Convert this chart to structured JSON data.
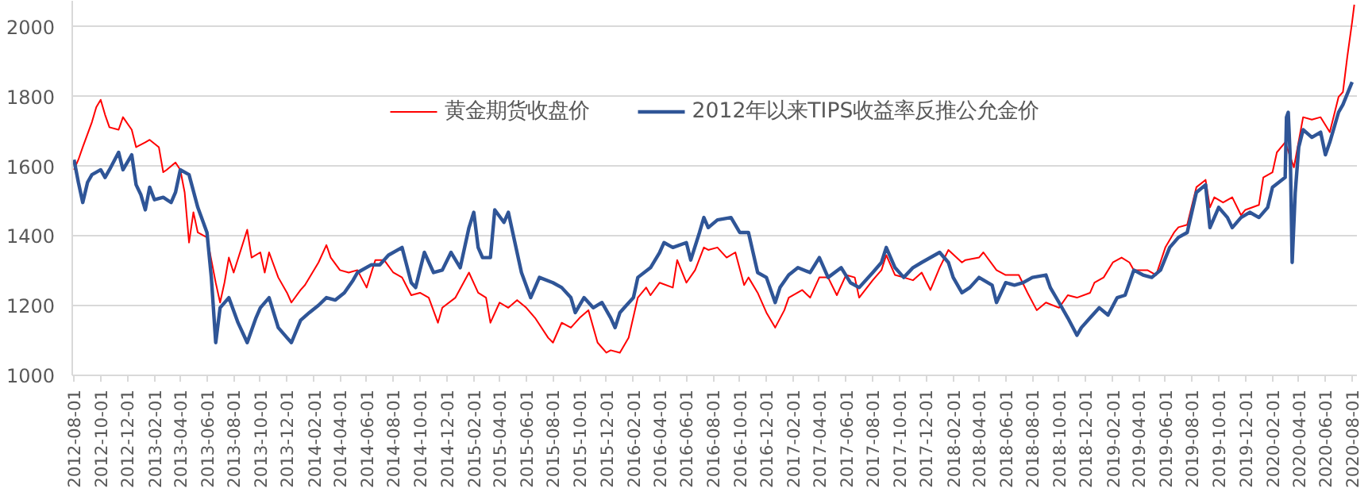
{
  "chart_data": {
    "type": "line",
    "legend": "top",
    "grid": "y",
    "line_style": "solid",
    "ylim": [
      1000,
      2075
    ],
    "yticks": [
      1000,
      1200,
      1400,
      1600,
      1800,
      2000
    ],
    "xlim": [
      "2012-07-28",
      "2020-08-12"
    ],
    "xticks": [
      "2012-08-01",
      "2012-10-01",
      "2012-12-01",
      "2013-02-01",
      "2013-04-01",
      "2013-06-01",
      "2013-08-01",
      "2013-10-01",
      "2013-12-01",
      "2014-02-01",
      "2014-04-01",
      "2014-06-01",
      "2014-08-01",
      "2014-10-01",
      "2014-12-01",
      "2015-02-01",
      "2015-04-01",
      "2015-06-01",
      "2015-08-01",
      "2015-10-01",
      "2015-12-01",
      "2016-02-01",
      "2016-04-01",
      "2016-06-01",
      "2016-08-01",
      "2016-10-01",
      "2016-12-01",
      "2017-02-01",
      "2017-04-01",
      "2017-06-01",
      "2017-08-01",
      "2017-10-01",
      "2017-12-01",
      "2018-02-01",
      "2018-04-01",
      "2018-06-01",
      "2018-08-01",
      "2018-10-01",
      "2018-12-01",
      "2019-02-01",
      "2019-04-01",
      "2019-06-01",
      "2019-08-01",
      "2019-10-01",
      "2019-12-01",
      "2020-02-01",
      "2020-04-01",
      "2020-06-01",
      "2020-08-01"
    ],
    "series": [
      {
        "name": "黄金期货收盘价",
        "color": "#ff0000",
        "x": [
          "2012-08-01",
          "2012-08-11",
          "2012-08-21",
          "2012-09-11",
          "2012-09-21",
          "2012-10-01",
          "2012-10-11",
          "2012-10-21",
          "2012-11-11",
          "2012-11-21",
          "2012-12-11",
          "2012-12-21",
          "2013-01-11",
          "2013-01-21",
          "2013-02-11",
          "2013-02-21",
          "2013-03-01",
          "2013-03-21",
          "2013-04-01",
          "2013-04-11",
          "2013-04-21",
          "2013-05-01",
          "2013-05-11",
          "2013-06-01",
          "2013-06-21",
          "2013-07-01",
          "2013-07-11",
          "2013-07-21",
          "2013-08-01",
          "2013-09-01",
          "2013-09-11",
          "2013-10-01",
          "2013-10-11",
          "2013-10-21",
          "2013-11-11",
          "2013-12-01",
          "2013-12-11",
          "2014-01-01",
          "2014-01-11",
          "2014-02-11",
          "2014-03-01",
          "2014-03-11",
          "2014-04-01",
          "2014-04-21",
          "2014-05-11",
          "2014-06-01",
          "2014-06-21",
          "2014-07-11",
          "2014-08-01",
          "2014-08-21",
          "2014-09-11",
          "2014-10-01",
          "2014-10-21",
          "2014-11-11",
          "2014-11-21",
          "2014-12-21",
          "2015-01-21",
          "2015-02-11",
          "2015-03-01",
          "2015-03-11",
          "2015-04-01",
          "2015-04-21",
          "2015-05-11",
          "2015-06-01",
          "2015-06-21",
          "2015-07-21",
          "2015-08-01",
          "2015-08-21",
          "2015-09-11",
          "2015-10-01",
          "2015-10-21",
          "2015-11-11",
          "2015-12-01",
          "2015-12-11",
          "2016-01-01",
          "2016-01-21",
          "2016-02-11",
          "2016-03-01",
          "2016-03-11",
          "2016-04-01",
          "2016-05-01",
          "2016-05-11",
          "2016-06-01",
          "2016-06-21",
          "2016-07-11",
          "2016-07-21",
          "2016-08-11",
          "2016-09-01",
          "2016-09-21",
          "2016-10-11",
          "2016-10-21",
          "2016-11-11",
          "2016-12-01",
          "2016-12-21",
          "2017-01-11",
          "2017-01-21",
          "2017-02-21",
          "2017-03-11",
          "2017-04-01",
          "2017-04-21",
          "2017-05-11",
          "2017-06-01",
          "2017-06-21",
          "2017-07-01",
          "2017-08-01",
          "2017-08-21",
          "2017-09-01",
          "2017-09-21",
          "2017-10-11",
          "2017-11-01",
          "2017-11-21",
          "2017-12-11",
          "2018-01-01",
          "2018-01-21",
          "2018-02-21",
          "2018-03-01",
          "2018-04-01",
          "2018-04-11",
          "2018-05-11",
          "2018-06-01",
          "2018-07-01",
          "2018-07-21",
          "2018-08-11",
          "2018-09-01",
          "2018-10-01",
          "2018-10-21",
          "2018-11-11",
          "2018-12-11",
          "2018-12-21",
          "2019-01-11",
          "2019-02-01",
          "2019-02-21",
          "2019-03-11",
          "2019-03-21",
          "2019-04-21",
          "2019-05-11",
          "2019-06-01",
          "2019-06-21",
          "2019-07-01",
          "2019-07-21",
          "2019-08-11",
          "2019-09-01",
          "2019-09-11",
          "2019-09-21",
          "2019-10-11",
          "2019-11-01",
          "2019-11-21",
          "2019-12-01",
          "2020-01-01",
          "2020-01-11",
          "2020-02-01",
          "2020-02-11",
          "2020-03-01",
          "2020-03-21",
          "2020-04-11",
          "2020-05-01",
          "2020-05-21",
          "2020-06-11",
          "2020-07-01",
          "2020-07-11",
          "2020-07-21",
          "2020-08-01",
          "2020-08-06"
        ],
        "values": [
          1590,
          1619,
          1655,
          1727,
          1770,
          1791,
          1748,
          1712,
          1705,
          1741,
          1705,
          1655,
          1669,
          1676,
          1655,
          1583,
          1590,
          1611,
          1590,
          1525,
          1381,
          1468,
          1410,
          1396,
          1266,
          1209,
          1266,
          1338,
          1295,
          1418,
          1338,
          1353,
          1295,
          1353,
          1281,
          1237,
          1209,
          1245,
          1259,
          1324,
          1374,
          1338,
          1302,
          1295,
          1302,
          1252,
          1331,
          1331,
          1295,
          1281,
          1230,
          1237,
          1223,
          1151,
          1194,
          1223,
          1295,
          1237,
          1223,
          1151,
          1209,
          1194,
          1216,
          1194,
          1165,
          1108,
          1094,
          1151,
          1137,
          1165,
          1187,
          1094,
          1065,
          1072,
          1065,
          1108,
          1223,
          1252,
          1230,
          1266,
          1252,
          1331,
          1266,
          1302,
          1367,
          1360,
          1367,
          1338,
          1353,
          1259,
          1281,
          1237,
          1180,
          1137,
          1187,
          1223,
          1245,
          1223,
          1281,
          1281,
          1230,
          1288,
          1281,
          1223,
          1273,
          1302,
          1345,
          1288,
          1281,
          1273,
          1295,
          1245,
          1309,
          1360,
          1324,
          1331,
          1338,
          1353,
          1302,
          1288,
          1288,
          1237,
          1187,
          1209,
          1194,
          1230,
          1223,
          1237,
          1266,
          1281,
          1324,
          1338,
          1324,
          1302,
          1302,
          1288,
          1367,
          1410,
          1425,
          1432,
          1540,
          1561,
          1482,
          1511,
          1496,
          1511,
          1460,
          1475,
          1489,
          1568,
          1583,
          1640,
          1669,
          1597,
          1741,
          1734,
          1741,
          1698,
          1799,
          1813,
          1914,
          2014,
          2064
        ]
      },
      {
        "name": "2012年以来TIPS收益率反推公允金价",
        "color": "#2f5597",
        "x": [
          "2012-08-01",
          "2012-08-11",
          "2012-08-21",
          "2012-09-01",
          "2012-09-11",
          "2012-10-01",
          "2012-10-11",
          "2012-10-21",
          "2012-11-11",
          "2012-11-21",
          "2012-12-11",
          "2012-12-21",
          "2013-01-01",
          "2013-01-11",
          "2013-01-21",
          "2013-02-01",
          "2013-02-21",
          "2013-03-11",
          "2013-03-21",
          "2013-04-01",
          "2013-04-21",
          "2013-05-11",
          "2013-06-01",
          "2013-06-11",
          "2013-06-21",
          "2013-07-01",
          "2013-07-21",
          "2013-08-11",
          "2013-09-01",
          "2013-09-21",
          "2013-10-01",
          "2013-10-21",
          "2013-11-11",
          "2013-12-01",
          "2013-12-11",
          "2014-01-01",
          "2014-01-21",
          "2014-02-11",
          "2014-03-01",
          "2014-03-21",
          "2014-04-11",
          "2014-05-01",
          "2014-05-11",
          "2014-06-11",
          "2014-07-01",
          "2014-07-21",
          "2014-08-21",
          "2014-09-11",
          "2014-09-21",
          "2014-10-11",
          "2014-11-01",
          "2014-11-21",
          "2014-12-11",
          "2015-01-01",
          "2015-01-21",
          "2015-02-01",
          "2015-02-11",
          "2015-02-21",
          "2015-03-11",
          "2015-03-21",
          "2015-04-11",
          "2015-04-21",
          "2015-05-01",
          "2015-05-21",
          "2015-06-11",
          "2015-07-01",
          "2015-08-01",
          "2015-08-21",
          "2015-09-11",
          "2015-09-21",
          "2015-10-11",
          "2015-11-01",
          "2015-11-21",
          "2015-12-11",
          "2015-12-21",
          "2016-01-01",
          "2016-01-11",
          "2016-02-01",
          "2016-02-11",
          "2016-03-11",
          "2016-04-01",
          "2016-04-11",
          "2016-05-01",
          "2016-06-01",
          "2016-06-11",
          "2016-07-01",
          "2016-07-11",
          "2016-07-21",
          "2016-08-11",
          "2016-09-11",
          "2016-10-01",
          "2016-10-21",
          "2016-11-11",
          "2016-12-01",
          "2016-12-21",
          "2017-01-01",
          "2017-01-21",
          "2017-02-11",
          "2017-03-11",
          "2017-04-01",
          "2017-04-21",
          "2017-05-21",
          "2017-06-11",
          "2017-07-01",
          "2017-08-01",
          "2017-08-21",
          "2017-09-01",
          "2017-09-21",
          "2017-10-11",
          "2017-11-01",
          "2017-11-21",
          "2018-01-01",
          "2018-01-21",
          "2018-02-01",
          "2018-02-21",
          "2018-03-11",
          "2018-04-01",
          "2018-05-01",
          "2018-05-11",
          "2018-06-01",
          "2018-06-21",
          "2018-07-11",
          "2018-08-01",
          "2018-09-01",
          "2018-09-11",
          "2018-10-01",
          "2018-10-21",
          "2018-11-11",
          "2018-11-21",
          "2018-12-11",
          "2019-01-01",
          "2019-01-21",
          "2019-02-11",
          "2019-03-01",
          "2019-03-21",
          "2019-04-11",
          "2019-05-01",
          "2019-05-21",
          "2019-06-11",
          "2019-07-01",
          "2019-07-21",
          "2019-08-11",
          "2019-09-01",
          "2019-09-11",
          "2019-10-01",
          "2019-10-21",
          "2019-11-01",
          "2019-11-21",
          "2019-12-11",
          "2020-01-01",
          "2020-01-21",
          "2020-02-01",
          "2020-03-01",
          "2020-03-04",
          "2020-03-08",
          "2020-03-13",
          "2020-03-17",
          "2020-03-24",
          "2020-04-01",
          "2020-04-11",
          "2020-05-01",
          "2020-05-21",
          "2020-06-01",
          "2020-06-11",
          "2020-07-01",
          "2020-07-11",
          "2020-08-01"
        ],
        "values": [
          1619,
          1554,
          1496,
          1554,
          1576,
          1590,
          1568,
          1590,
          1640,
          1590,
          1633,
          1547,
          1518,
          1475,
          1540,
          1504,
          1511,
          1496,
          1525,
          1590,
          1576,
          1482,
          1410,
          1281,
          1094,
          1194,
          1223,
          1151,
          1094,
          1165,
          1194,
          1223,
          1137,
          1108,
          1094,
          1158,
          1180,
          1201,
          1223,
          1216,
          1237,
          1273,
          1295,
          1317,
          1317,
          1345,
          1367,
          1266,
          1252,
          1353,
          1295,
          1302,
          1353,
          1309,
          1424,
          1468,
          1367,
          1338,
          1338,
          1475,
          1439,
          1468,
          1410,
          1295,
          1223,
          1281,
          1266,
          1252,
          1223,
          1180,
          1223,
          1194,
          1209,
          1165,
          1137,
          1180,
          1194,
          1223,
          1281,
          1309,
          1353,
          1381,
          1367,
          1381,
          1331,
          1410,
          1453,
          1424,
          1446,
          1453,
          1410,
          1410,
          1295,
          1281,
          1209,
          1252,
          1288,
          1309,
          1295,
          1338,
          1281,
          1309,
          1266,
          1252,
          1295,
          1324,
          1367,
          1309,
          1281,
          1309,
          1324,
          1353,
          1324,
          1281,
          1237,
          1252,
          1281,
          1259,
          1209,
          1266,
          1259,
          1266,
          1281,
          1288,
          1252,
          1209,
          1165,
          1115,
          1137,
          1165,
          1194,
          1173,
          1223,
          1230,
          1302,
          1288,
          1281,
          1302,
          1367,
          1396,
          1410,
          1525,
          1547,
          1424,
          1482,
          1453,
          1424,
          1453,
          1468,
          1453,
          1482,
          1540,
          1568,
          1741,
          1755,
          1612,
          1324,
          1525,
          1655,
          1705,
          1683,
          1698,
          1633,
          1669,
          1755,
          1777,
          1842
        ]
      }
    ]
  }
}
